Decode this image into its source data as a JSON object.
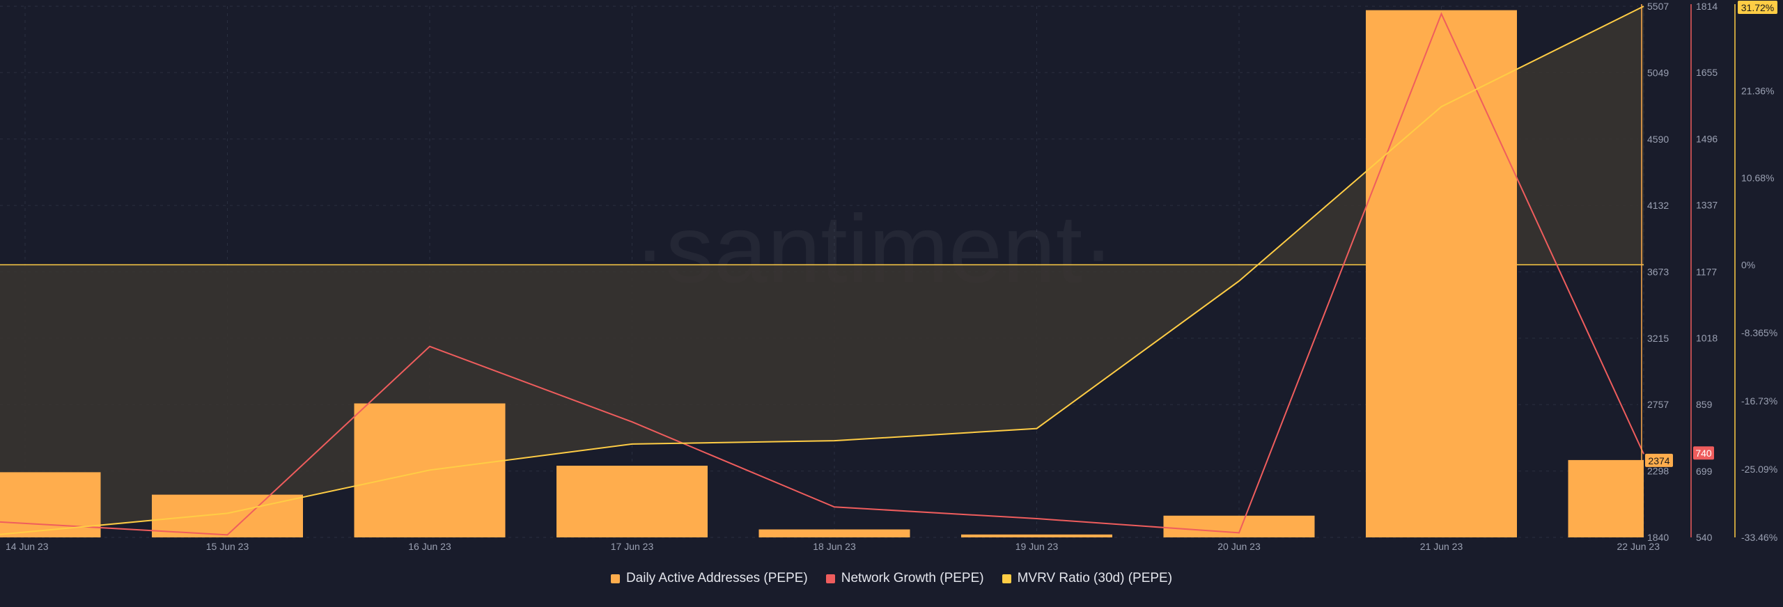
{
  "watermark": "·santiment·",
  "colors": {
    "background": "#191c2b",
    "bars": "#ffad4d",
    "network": "#ef5d5d",
    "mvrv": "#ffcd45",
    "mvrv_fill": "#3a3530",
    "grid": "#2a2f40",
    "axis_text": "#9aa0b2"
  },
  "chart_data": {
    "type": "bar+line",
    "x": [
      "14 Jun 23",
      "15 Jun 23",
      "16 Jun 23",
      "17 Jun 23",
      "18 Jun 23",
      "19 Jun 23",
      "20 Jun 23",
      "21 Jun 23",
      "22 Jun 23"
    ],
    "series": [
      {
        "name": "Daily Active Addresses (PEPE)",
        "type": "bar",
        "axis": "left-axis",
        "values": [
          2290,
          2135,
          2765,
          2335,
          1895,
          1860,
          1990,
          5480,
          2374
        ]
      },
      {
        "name": "Network Growth (PEPE)",
        "type": "line",
        "axis": "middle-axis",
        "values": [
          577,
          546,
          998,
          817,
          613,
          585,
          551,
          1796,
          740
        ]
      },
      {
        "name": "MVRV Ratio (30d) (PEPE)",
        "type": "area",
        "axis": "right-axis",
        "values": [
          -33.1,
          -30.5,
          -25.2,
          -22.0,
          -21.6,
          -20.1,
          -2.0,
          19.4,
          31.72
        ]
      }
    ],
    "axes": {
      "left": {
        "ticks": [
          "5507",
          "5049",
          "4590",
          "4132",
          "3673",
          "3215",
          "2757",
          "2298",
          "1840"
        ],
        "ylim": [
          1840,
          5507
        ]
      },
      "middle": {
        "ticks": [
          "1814",
          "1655",
          "1496",
          "1337",
          "1177",
          "1018",
          "859",
          "699",
          "540"
        ],
        "ylim": [
          540,
          1814
        ]
      },
      "right": {
        "ticks": [
          "21.36%",
          "10.68%",
          "0%",
          "-8.365%",
          "-16.73%",
          "-25.09%",
          "-33.46%"
        ],
        "ylim": [
          -33.46,
          31.72
        ]
      }
    },
    "last_value_labels": {
      "bars": "2374",
      "network": "740",
      "mvrv": "31.72%"
    },
    "legend_position": "bottom-center",
    "grid": true
  },
  "legend": [
    {
      "label": "Daily Active Addresses (PEPE)",
      "color": "#ffad4d"
    },
    {
      "label": "Network Growth (PEPE)",
      "color": "#ef5d5d"
    },
    {
      "label": "MVRV Ratio (30d) (PEPE)",
      "color": "#ffcd45"
    }
  ]
}
